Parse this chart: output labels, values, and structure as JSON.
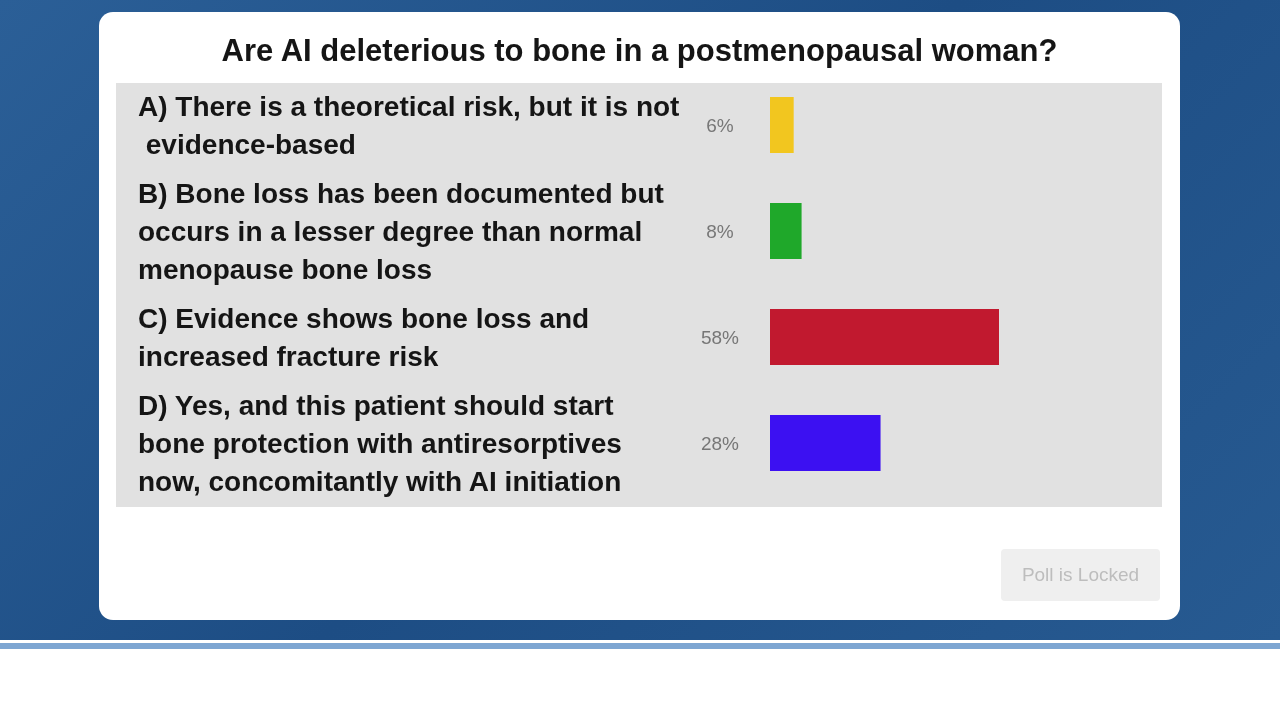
{
  "chart_data": {
    "type": "bar",
    "orientation": "horizontal",
    "title": "Are AI deleterious to bone in a postmenopausal woman?",
    "categories": [
      "A) There is a theoretical risk, but it is not evidence-based",
      "B) Bone loss has been documented but occurs in a lesser degree than normal menopause bone loss",
      "C) Evidence shows bone loss and increased fracture risk",
      "D) Yes, and this patient should start bone protection with antiresorptives now, concomitantly with AI initiation"
    ],
    "values": [
      6,
      8,
      58,
      28
    ],
    "colors": [
      "#f2c61f",
      "#1fa82a",
      "#c1192f",
      "#3c10f2"
    ],
    "value_labels": [
      "6%",
      "8%",
      "58%",
      "28%"
    ],
    "tick_labels": "y",
    "annotations": [
      "Poll is Locked"
    ]
  }
}
